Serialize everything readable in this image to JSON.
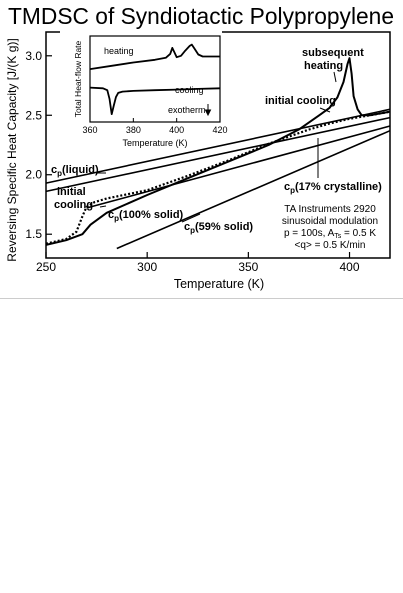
{
  "chart_data": [
    {
      "type": "line",
      "title": "TMDSC of Syndiotactic Polypropylene",
      "xlabel": "Temperature  (K)",
      "ylabel": "Reversing Specific Heat Capacity  [J/(K g)]",
      "xlim": [
        250,
        420
      ],
      "ylim": [
        1.3,
        3.2
      ],
      "x_ticks": [
        "250",
        "300",
        "350",
        "400"
      ],
      "y_ticks": [
        "1.5",
        "2.0",
        "2.5",
        "3.0"
      ],
      "grid": false,
      "series": [
        {
          "name": "subsequent heating",
          "x": [
            250,
            260,
            268,
            272,
            280,
            300,
            320,
            340,
            360,
            375,
            385,
            390,
            394,
            397,
            399,
            400,
            401,
            402,
            404,
            406,
            410,
            420
          ],
          "y": [
            1.41,
            1.45,
            1.5,
            1.58,
            1.68,
            1.83,
            1.97,
            2.11,
            2.25,
            2.38,
            2.5,
            2.56,
            2.65,
            2.78,
            2.93,
            2.98,
            2.85,
            2.66,
            2.55,
            2.5,
            2.5,
            2.53
          ]
        },
        {
          "name": "initial cooling",
          "x": [
            250,
            260,
            265,
            268,
            270,
            274,
            280,
            300,
            320,
            340,
            360,
            380,
            390,
            400,
            410,
            420
          ],
          "y": [
            1.42,
            1.46,
            1.52,
            1.65,
            1.73,
            1.77,
            1.8,
            1.87,
            1.99,
            2.12,
            2.26,
            2.38,
            2.43,
            2.47,
            2.5,
            2.53
          ]
        },
        {
          "name": "cp(liquid)",
          "x": [
            250,
            420
          ],
          "y": [
            1.93,
            2.55
          ]
        },
        {
          "name": "cp(17% crystalline)",
          "x": [
            250,
            420
          ],
          "y": [
            1.86,
            2.48
          ]
        },
        {
          "name": "cp(100% solid)",
          "x": [
            270,
            420
          ],
          "y": [
            1.72,
            2.41
          ]
        },
        {
          "name": "cp(59% solid)",
          "x": [
            285,
            420
          ],
          "y": [
            1.38,
            2.37
          ]
        }
      ],
      "annotations": {
        "subsequent_heating": "subsequent heating",
        "initial_cooling_top": "initial cooling",
        "initial_cooling_left": "initial cooling",
        "cp_liquid": "c",
        "cp_liquid_sub": "p",
        "cp_liquid_rest": "(liquid)",
        "cp_17_rest": "(17% crystalline)",
        "cp_100_rest": "(100% solid)",
        "cp_59_rest": "(59% solid)",
        "instrument_line1": "TA Instruments 2920",
        "instrument_line2": "sinusoidal modulation",
        "instrument_line3": "p = 100s,  A",
        "instrument_line3_sub": "Ts",
        "instrument_line3_rest": " = 0.5 K",
        "instrument_line4": "<q> = 0.5 K/min"
      }
    },
    {
      "type": "line",
      "title": "",
      "xlabel": "Temperature  (K)",
      "ylabel": "Total Heat-flow Rate",
      "xlim": [
        360,
        420
      ],
      "x_ticks": [
        "360",
        "380",
        "400",
        "420"
      ],
      "series": [
        {
          "name": "heating",
          "x": [
            360,
            370,
            380,
            390,
            395,
            397,
            398,
            399,
            400,
            402,
            404,
            406,
            407,
            408,
            410,
            412,
            420
          ],
          "y": [
            0.6,
            0.65,
            0.7,
            0.74,
            0.77,
            0.83,
            0.92,
            0.85,
            0.78,
            0.8,
            0.88,
            0.95,
            0.97,
            0.92,
            0.82,
            0.79,
            0.79
          ]
        },
        {
          "name": "cooling",
          "x": [
            360,
            366,
            368,
            369,
            370,
            371,
            372,
            373,
            375,
            380,
            390,
            400,
            410,
            420
          ],
          "y": [
            0.32,
            0.31,
            0.28,
            0.15,
            -0.08,
            0.05,
            0.18,
            0.24,
            0.26,
            0.27,
            0.28,
            0.29,
            0.3,
            0.31
          ]
        }
      ],
      "annotations": {
        "heating": "heating",
        "cooling": "cooling",
        "exotherm": "exotherm"
      }
    }
  ]
}
